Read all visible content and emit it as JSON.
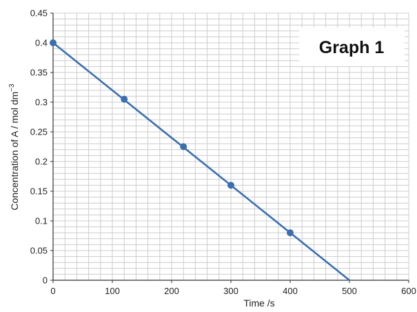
{
  "chart_data": {
    "type": "line",
    "title": "Graph 1",
    "xlabel": "Time /s",
    "ylabel_main": "Concentration of A / mol dm",
    "ylabel_sup": "−3",
    "xlim": [
      0,
      600
    ],
    "ylim": [
      0,
      0.45
    ],
    "x_ticks": [
      "0",
      "100",
      "200",
      "300",
      "400",
      "500",
      "600"
    ],
    "y_ticks": [
      "0",
      "0.05",
      "0.1",
      "0.15",
      "0.2",
      "0.25",
      "0.3",
      "0.35",
      "0.4",
      "0.45"
    ],
    "grid": true,
    "line_color": "#3a6fb0",
    "series": [
      {
        "x": [
          0,
          120,
          220,
          300,
          400
        ],
        "y": [
          0.4,
          0.305,
          0.225,
          0.16,
          0.08
        ]
      }
    ],
    "trend_line": {
      "x": [
        0,
        500
      ],
      "y": [
        0.4,
        0.0
      ]
    }
  }
}
